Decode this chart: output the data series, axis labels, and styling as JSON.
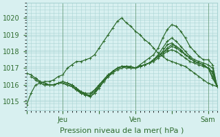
{
  "bg_color": "#d8f0f0",
  "grid_color": "#aad4d4",
  "line_color": "#2d6b2d",
  "marker": "+",
  "markersize": 3,
  "linewidth": 0.9,
  "ylim": [
    1014.5,
    1020.5
  ],
  "yticks": [
    1015,
    1016,
    1017,
    1018,
    1019,
    1020
  ],
  "xlabel": "Pression niveau de la mer( hPa )",
  "xlabel_fontsize": 8,
  "tick_fontsize": 7,
  "xtick_labels": [
    "",
    "Jeu",
    "",
    "Ven",
    "",
    "Sam"
  ],
  "xtick_positions": [
    0,
    48,
    96,
    144,
    192,
    240
  ],
  "xlim": [
    0,
    252
  ],
  "series": [
    {
      "x": [
        0,
        6,
        12,
        18,
        24,
        30,
        36,
        42,
        48,
        54,
        60,
        66,
        72,
        78,
        84,
        90,
        96,
        102,
        108,
        114,
        120,
        126,
        132,
        138,
        144,
        150,
        156,
        162,
        168,
        174,
        180,
        186,
        192,
        198,
        204,
        210,
        216,
        222,
        228,
        234,
        240,
        246,
        252
      ],
      "y": [
        1014.8,
        1015.5,
        1016.0,
        1016.1,
        1016.2,
        1016.2,
        1016.3,
        1016.5,
        1016.6,
        1017.0,
        1017.2,
        1017.4,
        1017.4,
        1017.5,
        1017.6,
        1017.8,
        1018.2,
        1018.6,
        1019.0,
        1019.4,
        1019.8,
        1020.0,
        1019.7,
        1019.5,
        1019.2,
        1019.0,
        1018.7,
        1018.5,
        1018.2,
        1017.9,
        1017.7,
        1017.5,
        1017.4,
        1017.3,
        1017.2,
        1017.1,
        1016.9,
        1016.7,
        1016.5,
        1016.3,
        1016.1,
        1016.0,
        1015.9
      ]
    },
    {
      "x": [
        0,
        6,
        12,
        18,
        24,
        30,
        36,
        42,
        48,
        54,
        60,
        66,
        72,
        78,
        84,
        90,
        96,
        102,
        108,
        114,
        120,
        126,
        132,
        138,
        144,
        150,
        156,
        162,
        168,
        174,
        180,
        186,
        192,
        198,
        204,
        210,
        216,
        222,
        228,
        234,
        240,
        246,
        252
      ],
      "y": [
        1016.7,
        1016.6,
        1016.4,
        1016.2,
        1016.1,
        1016.0,
        1016.0,
        1016.1,
        1016.2,
        1016.1,
        1016.0,
        1015.8,
        1015.5,
        1015.4,
        1015.3,
        1015.5,
        1015.9,
        1016.2,
        1016.5,
        1016.8,
        1017.0,
        1017.1,
        1017.1,
        1017.1,
        1017.0,
        1017.2,
        1017.4,
        1017.6,
        1017.8,
        1018.2,
        1018.8,
        1019.3,
        1019.6,
        1019.5,
        1019.2,
        1018.8,
        1018.3,
        1018.0,
        1017.7,
        1017.5,
        1017.5,
        1017.2,
        1015.9
      ]
    },
    {
      "x": [
        6,
        12,
        18,
        24,
        30,
        36,
        42,
        48,
        54,
        60,
        66,
        72,
        78,
        84,
        90,
        96,
        102,
        108,
        114,
        120,
        126,
        132,
        138,
        144,
        150,
        156,
        162,
        168,
        174,
        180,
        186,
        192,
        198,
        204,
        210,
        216,
        222,
        228,
        234,
        240,
        246,
        252
      ],
      "y": [
        1016.5,
        1016.3,
        1016.1,
        1016.0,
        1016.0,
        1016.0,
        1016.1,
        1016.2,
        1016.1,
        1016.0,
        1015.8,
        1015.6,
        1015.4,
        1015.3,
        1015.5,
        1015.9,
        1016.2,
        1016.5,
        1016.7,
        1016.9,
        1017.0,
        1017.1,
        1017.1,
        1017.0,
        1017.1,
        1017.2,
        1017.3,
        1017.5,
        1017.8,
        1018.2,
        1018.6,
        1018.8,
        1018.6,
        1018.3,
        1018.0,
        1017.7,
        1017.5,
        1017.4,
        1017.3,
        1017.2,
        1017.0,
        1015.9
      ]
    },
    {
      "x": [
        12,
        18,
        24,
        30,
        36,
        42,
        48,
        54,
        60,
        66,
        72,
        78,
        84,
        90,
        96,
        102,
        108,
        114,
        120,
        126,
        132,
        138,
        144,
        150,
        156,
        162,
        168,
        174,
        180,
        186,
        192,
        198,
        204,
        210,
        216,
        222,
        228,
        234,
        240,
        246,
        252
      ],
      "y": [
        1016.4,
        1016.2,
        1016.1,
        1016.0,
        1016.0,
        1016.1,
        1016.2,
        1016.1,
        1016.0,
        1015.8,
        1015.6,
        1015.5,
        1015.3,
        1015.5,
        1015.8,
        1016.2,
        1016.5,
        1016.8,
        1017.0,
        1017.1,
        1017.1,
        1017.0,
        1017.0,
        1017.1,
        1017.2,
        1017.3,
        1017.5,
        1017.7,
        1018.0,
        1018.4,
        1018.5,
        1018.3,
        1018.1,
        1017.8,
        1017.6,
        1017.4,
        1017.3,
        1017.2,
        1017.0,
        1016.8,
        1015.9
      ]
    },
    {
      "x": [
        18,
        24,
        30,
        36,
        42,
        48,
        54,
        60,
        66,
        72,
        78,
        84,
        90,
        96,
        102,
        108,
        114,
        120,
        126,
        132,
        138,
        144,
        150,
        156,
        162,
        168,
        174,
        180,
        186,
        192,
        198,
        204,
        210,
        216,
        222,
        228,
        234,
        240,
        246,
        252
      ],
      "y": [
        1016.1,
        1016.0,
        1016.0,
        1016.0,
        1016.1,
        1016.1,
        1016.0,
        1015.9,
        1015.7,
        1015.5,
        1015.4,
        1015.4,
        1015.7,
        1016.0,
        1016.3,
        1016.6,
        1016.8,
        1017.0,
        1017.1,
        1017.1,
        1017.0,
        1017.0,
        1017.1,
        1017.2,
        1017.3,
        1017.5,
        1017.7,
        1017.9,
        1018.2,
        1018.4,
        1018.3,
        1018.1,
        1017.8,
        1017.6,
        1017.4,
        1017.3,
        1017.2,
        1017.0,
        1016.7,
        1015.9
      ]
    },
    {
      "x": [
        24,
        30,
        36,
        42,
        48,
        54,
        60,
        66,
        72,
        78,
        84,
        90,
        96,
        102,
        108,
        114,
        120,
        126,
        132,
        138,
        144,
        150,
        156,
        162,
        168,
        174,
        180,
        186,
        192,
        198,
        204,
        210,
        216,
        222,
        228,
        234,
        240,
        246,
        252
      ],
      "y": [
        1016.0,
        1016.0,
        1016.0,
        1016.1,
        1016.1,
        1016.0,
        1015.9,
        1015.7,
        1015.5,
        1015.4,
        1015.4,
        1015.6,
        1016.0,
        1016.3,
        1016.6,
        1016.8,
        1017.0,
        1017.1,
        1017.1,
        1017.0,
        1017.0,
        1017.1,
        1017.2,
        1017.3,
        1017.5,
        1017.7,
        1017.9,
        1018.1,
        1018.3,
        1018.2,
        1018.0,
        1017.8,
        1017.6,
        1017.4,
        1017.3,
        1017.2,
        1017.0,
        1016.5,
        1015.9
      ]
    },
    {
      "x": [
        30,
        36,
        42,
        48,
        54,
        60,
        66,
        72,
        78,
        84,
        90,
        96,
        102,
        108,
        114,
        120,
        126,
        132,
        138,
        144,
        150,
        156,
        162,
        168,
        174,
        180,
        186,
        192,
        198,
        204,
        210,
        216,
        222,
        228,
        234,
        240,
        246,
        252
      ],
      "y": [
        1016.0,
        1016.0,
        1016.1,
        1016.1,
        1016.0,
        1015.9,
        1015.7,
        1015.6,
        1015.5,
        1015.5,
        1015.7,
        1016.0,
        1016.3,
        1016.6,
        1016.8,
        1017.0,
        1017.1,
        1017.0,
        1017.0,
        1017.0,
        1017.1,
        1017.2,
        1017.3,
        1017.4,
        1017.6,
        1017.8,
        1018.0,
        1018.1,
        1018.0,
        1017.8,
        1017.6,
        1017.4,
        1017.3,
        1017.2,
        1017.1,
        1017.0,
        1016.4,
        1015.9
      ]
    }
  ]
}
